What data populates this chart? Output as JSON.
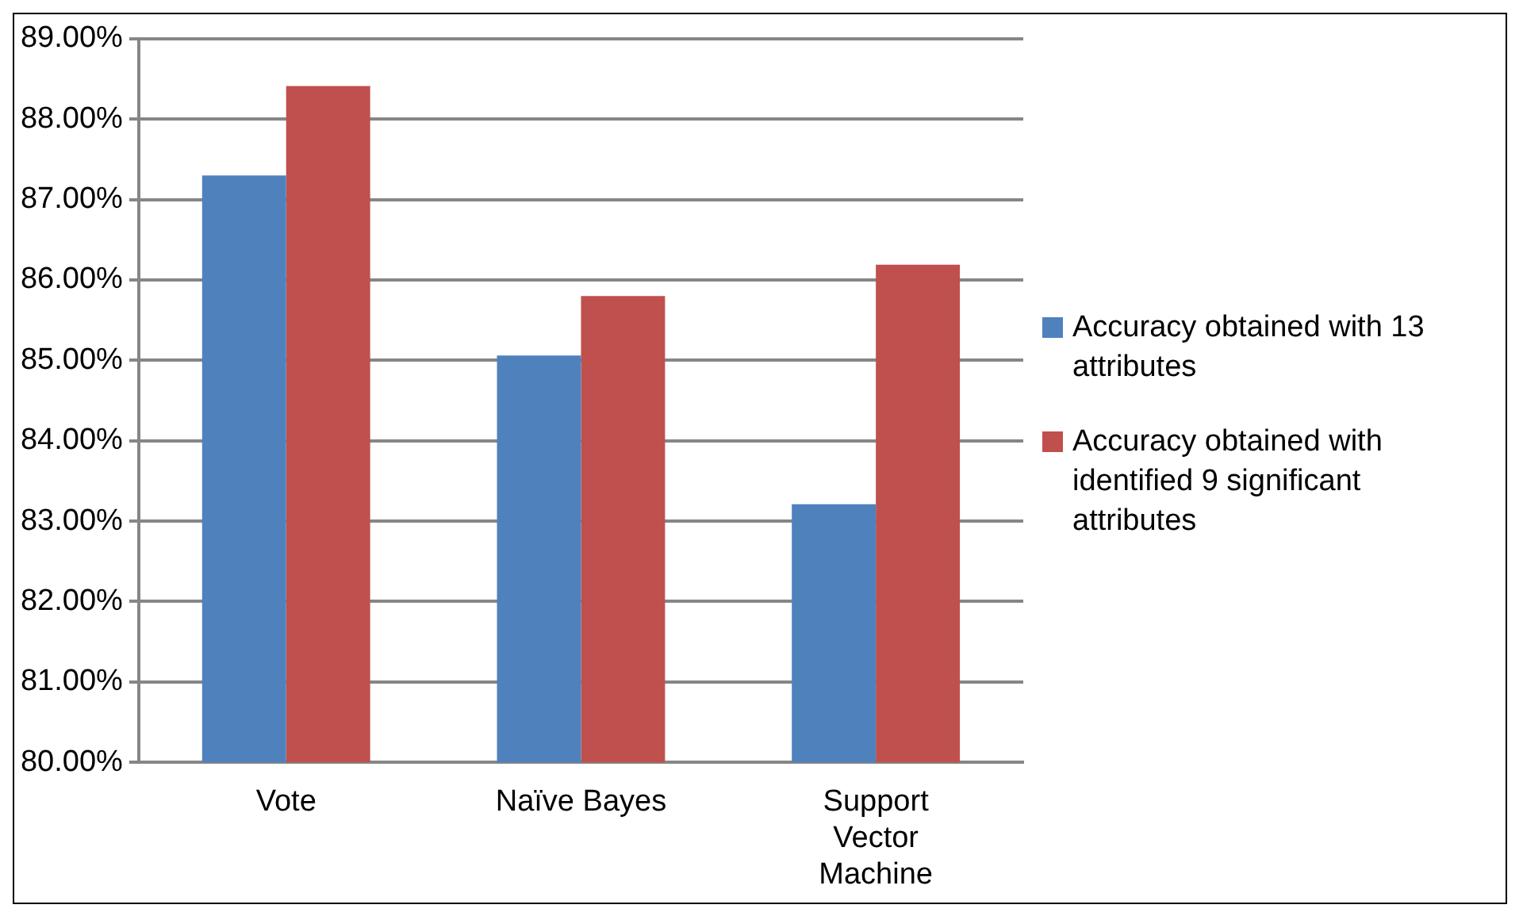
{
  "chart_data": {
    "type": "bar",
    "categories": [
      "Vote",
      "Naïve Bayes",
      "Support Vector Machine"
    ],
    "series": [
      {
        "name": "Accuracy obtained with 13 attributes",
        "color": "#4f81bd",
        "values": [
          87.3,
          85.06,
          83.21
        ]
      },
      {
        "name": "Accuracy obtained with identified 9 significant attributes",
        "color": "#c0504d",
        "values": [
          88.41,
          85.8,
          86.19
        ]
      }
    ],
    "ylim": [
      80,
      89
    ],
    "yticks": [
      {
        "value": 80,
        "label": "80.00%"
      },
      {
        "value": 81,
        "label": "81.00%"
      },
      {
        "value": 82,
        "label": "82.00%"
      },
      {
        "value": 83,
        "label": "83.00%"
      },
      {
        "value": 84,
        "label": "84.00%"
      },
      {
        "value": 85,
        "label": "85.00%"
      },
      {
        "value": 86,
        "label": "86.00%"
      },
      {
        "value": 87,
        "label": "87.00%"
      },
      {
        "value": 88,
        "label": "88.00%"
      },
      {
        "value": 89,
        "label": "89.00%"
      }
    ],
    "grid": "y",
    "legend": "right"
  }
}
